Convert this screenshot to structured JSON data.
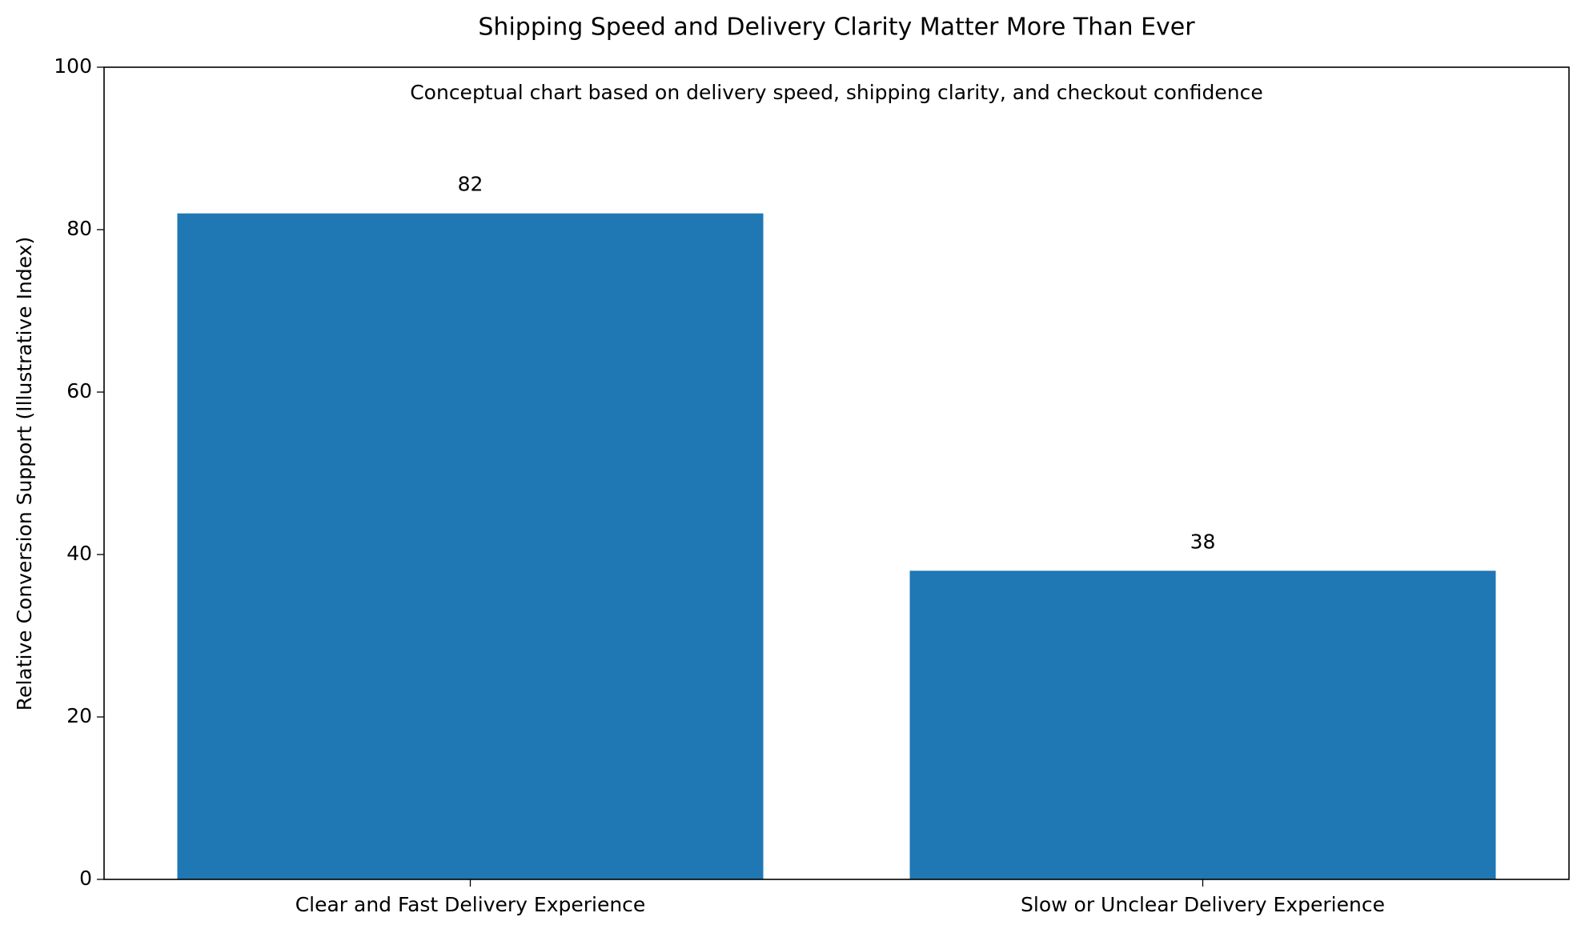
{
  "chart_data": {
    "type": "bar",
    "title": "Shipping Speed and Delivery Clarity Matter More Than Ever",
    "subtitle": "Conceptual chart based on delivery speed, shipping clarity, and checkout confidence",
    "y_label": "Relative Conversion Support (Illustrative Index)",
    "categories": [
      "Clear and Fast Delivery Experience",
      "Slow or Unclear Delivery Experience"
    ],
    "values": [
      82,
      38
    ],
    "color": "#1f77b4",
    "ylim": [
      0,
      100
    ],
    "yticks": [
      0,
      20,
      40,
      60,
      80,
      100
    ],
    "grid": false
  }
}
